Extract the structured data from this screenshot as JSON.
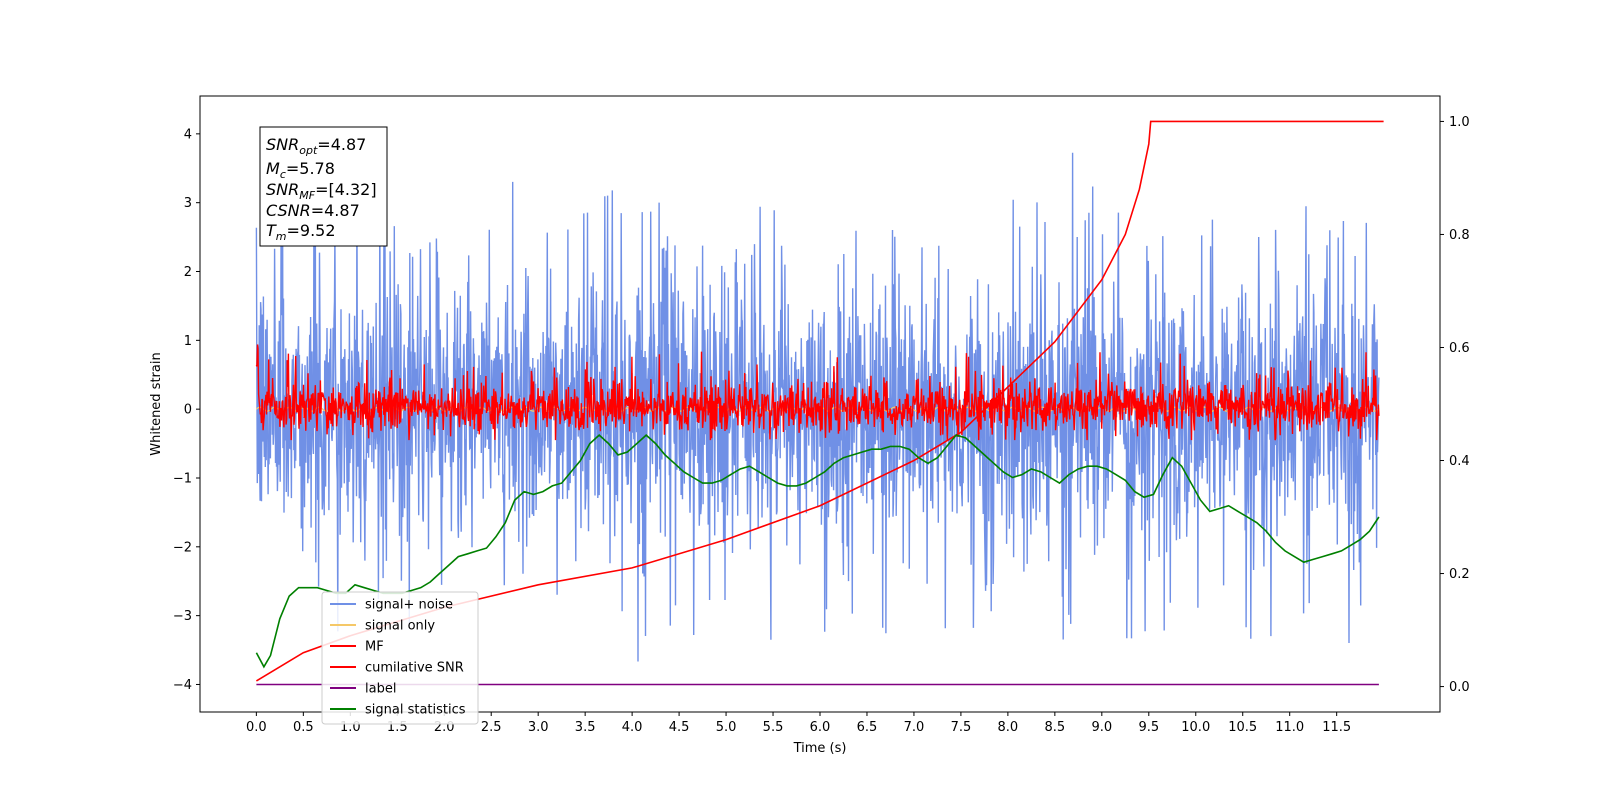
{
  "chart_data": {
    "type": "line",
    "xlabel": "Time (s)",
    "ylabel": "Whitened strain",
    "xlim": [
      -0.6,
      12.6
    ],
    "ylim": [
      -4.4,
      4.55
    ],
    "y2lim": [
      -0.045,
      1.045
    ],
    "xticks": [
      "0.0",
      "0.5",
      "1.0",
      "1.5",
      "2.0",
      "2.5",
      "3.0",
      "3.5",
      "4.0",
      "4.5",
      "5.0",
      "5.5",
      "6.0",
      "6.5",
      "7.0",
      "7.5",
      "8.0",
      "8.5",
      "9.0",
      "9.5",
      "10.0",
      "10.5",
      "11.0",
      "11.5"
    ],
    "yticks": [
      "−4",
      "−3",
      "−2",
      "−1",
      "0",
      "1",
      "2",
      "3",
      "4"
    ],
    "y2ticks": [
      "0.0",
      "0.2",
      "0.4",
      "0.6",
      "0.8",
      "1.0"
    ],
    "annotation": {
      "snr_opt": {
        "base": "SNR",
        "sub": "opt",
        "value": "=4.87"
      },
      "mc": {
        "base": "M",
        "sub": "c",
        "value": "=5.78"
      },
      "snr_mf": {
        "base": "SNR",
        "sub": "MF",
        "value": "=[4.32]"
      },
      "csnr": {
        "base": "CSNR",
        "sub": "",
        "value": "=4.87"
      },
      "tm": {
        "base": "T",
        "sub": "m",
        "value": "=9.52"
      }
    },
    "legend_position": "lower-left",
    "series": [
      {
        "name": "signal+ noise",
        "color": "#7090e6",
        "description_range": [
          -2.2,
          2.2
        ],
        "axis": "left"
      },
      {
        "name": "signal only",
        "color": "#f5c868",
        "axis": "left"
      },
      {
        "name": "MF",
        "color": "#ff0000",
        "axis": "left"
      },
      {
        "name": "cumilative SNR",
        "color": "#ff0000",
        "axis": "right",
        "points": [
          [
            0.0,
            0.01
          ],
          [
            0.5,
            0.06
          ],
          [
            1.0,
            0.09
          ],
          [
            2.0,
            0.14
          ],
          [
            3.0,
            0.18
          ],
          [
            4.0,
            0.21
          ],
          [
            5.0,
            0.26
          ],
          [
            6.0,
            0.32
          ],
          [
            7.0,
            0.4
          ],
          [
            7.5,
            0.45
          ],
          [
            8.0,
            0.53
          ],
          [
            8.5,
            0.61
          ],
          [
            9.0,
            0.72
          ],
          [
            9.25,
            0.8
          ],
          [
            9.4,
            0.88
          ],
          [
            9.5,
            0.96
          ],
          [
            9.52,
            1.0
          ],
          [
            12.0,
            1.0
          ]
        ]
      },
      {
        "name": "label",
        "color": "#800080",
        "axis": "left",
        "points": [
          [
            0.0,
            -4.0
          ],
          [
            11.95,
            -4.0
          ]
        ]
      },
      {
        "name": "signal statistics",
        "color": "#008000",
        "axis": "right",
        "points": [
          [
            0.0,
            0.06
          ],
          [
            0.08,
            0.035
          ],
          [
            0.15,
            0.055
          ],
          [
            0.25,
            0.12
          ],
          [
            0.35,
            0.16
          ],
          [
            0.45,
            0.175
          ],
          [
            0.55,
            0.175
          ],
          [
            0.65,
            0.175
          ],
          [
            0.75,
            0.17
          ],
          [
            0.85,
            0.165
          ],
          [
            0.95,
            0.165
          ],
          [
            1.05,
            0.18
          ],
          [
            1.15,
            0.175
          ],
          [
            1.25,
            0.17
          ],
          [
            1.35,
            0.165
          ],
          [
            1.45,
            0.165
          ],
          [
            1.55,
            0.165
          ],
          [
            1.65,
            0.17
          ],
          [
            1.75,
            0.175
          ],
          [
            1.85,
            0.185
          ],
          [
            1.95,
            0.2
          ],
          [
            2.05,
            0.215
          ],
          [
            2.15,
            0.23
          ],
          [
            2.25,
            0.235
          ],
          [
            2.35,
            0.24
          ],
          [
            2.45,
            0.245
          ],
          [
            2.55,
            0.265
          ],
          [
            2.65,
            0.29
          ],
          [
            2.75,
            0.33
          ],
          [
            2.85,
            0.345
          ],
          [
            2.95,
            0.34
          ],
          [
            3.05,
            0.345
          ],
          [
            3.15,
            0.355
          ],
          [
            3.25,
            0.36
          ],
          [
            3.35,
            0.38
          ],
          [
            3.45,
            0.4
          ],
          [
            3.55,
            0.43
          ],
          [
            3.65,
            0.445
          ],
          [
            3.75,
            0.43
          ],
          [
            3.85,
            0.41
          ],
          [
            3.95,
            0.415
          ],
          [
            4.05,
            0.43
          ],
          [
            4.15,
            0.445
          ],
          [
            4.25,
            0.43
          ],
          [
            4.35,
            0.41
          ],
          [
            4.45,
            0.395
          ],
          [
            4.55,
            0.38
          ],
          [
            4.65,
            0.37
          ],
          [
            4.75,
            0.36
          ],
          [
            4.85,
            0.36
          ],
          [
            4.95,
            0.365
          ],
          [
            5.05,
            0.375
          ],
          [
            5.15,
            0.385
          ],
          [
            5.25,
            0.39
          ],
          [
            5.35,
            0.38
          ],
          [
            5.45,
            0.37
          ],
          [
            5.55,
            0.36
          ],
          [
            5.65,
            0.355
          ],
          [
            5.75,
            0.355
          ],
          [
            5.85,
            0.36
          ],
          [
            5.95,
            0.37
          ],
          [
            6.05,
            0.38
          ],
          [
            6.15,
            0.395
          ],
          [
            6.25,
            0.405
          ],
          [
            6.35,
            0.41
          ],
          [
            6.45,
            0.415
          ],
          [
            6.55,
            0.42
          ],
          [
            6.65,
            0.42
          ],
          [
            6.75,
            0.425
          ],
          [
            6.85,
            0.425
          ],
          [
            6.95,
            0.42
          ],
          [
            7.05,
            0.405
          ],
          [
            7.15,
            0.395
          ],
          [
            7.25,
            0.405
          ],
          [
            7.35,
            0.425
          ],
          [
            7.45,
            0.445
          ],
          [
            7.55,
            0.44
          ],
          [
            7.65,
            0.425
          ],
          [
            7.75,
            0.41
          ],
          [
            7.85,
            0.395
          ],
          [
            7.95,
            0.38
          ],
          [
            8.05,
            0.37
          ],
          [
            8.15,
            0.375
          ],
          [
            8.25,
            0.385
          ],
          [
            8.35,
            0.38
          ],
          [
            8.45,
            0.37
          ],
          [
            8.55,
            0.36
          ],
          [
            8.65,
            0.375
          ],
          [
            8.75,
            0.385
          ],
          [
            8.85,
            0.39
          ],
          [
            8.95,
            0.39
          ],
          [
            9.05,
            0.385
          ],
          [
            9.15,
            0.375
          ],
          [
            9.25,
            0.365
          ],
          [
            9.35,
            0.345
          ],
          [
            9.45,
            0.335
          ],
          [
            9.55,
            0.34
          ],
          [
            9.65,
            0.375
          ],
          [
            9.75,
            0.405
          ],
          [
            9.85,
            0.39
          ],
          [
            9.95,
            0.36
          ],
          [
            10.05,
            0.33
          ],
          [
            10.15,
            0.31
          ],
          [
            10.25,
            0.315
          ],
          [
            10.35,
            0.32
          ],
          [
            10.45,
            0.31
          ],
          [
            10.55,
            0.3
          ],
          [
            10.65,
            0.29
          ],
          [
            10.75,
            0.275
          ],
          [
            10.85,
            0.255
          ],
          [
            10.95,
            0.24
          ],
          [
            11.05,
            0.23
          ],
          [
            11.15,
            0.22
          ],
          [
            11.25,
            0.225
          ],
          [
            11.35,
            0.23
          ],
          [
            11.45,
            0.235
          ],
          [
            11.55,
            0.24
          ],
          [
            11.65,
            0.25
          ],
          [
            11.75,
            0.26
          ],
          [
            11.85,
            0.275
          ],
          [
            11.95,
            0.3
          ]
        ]
      }
    ]
  }
}
